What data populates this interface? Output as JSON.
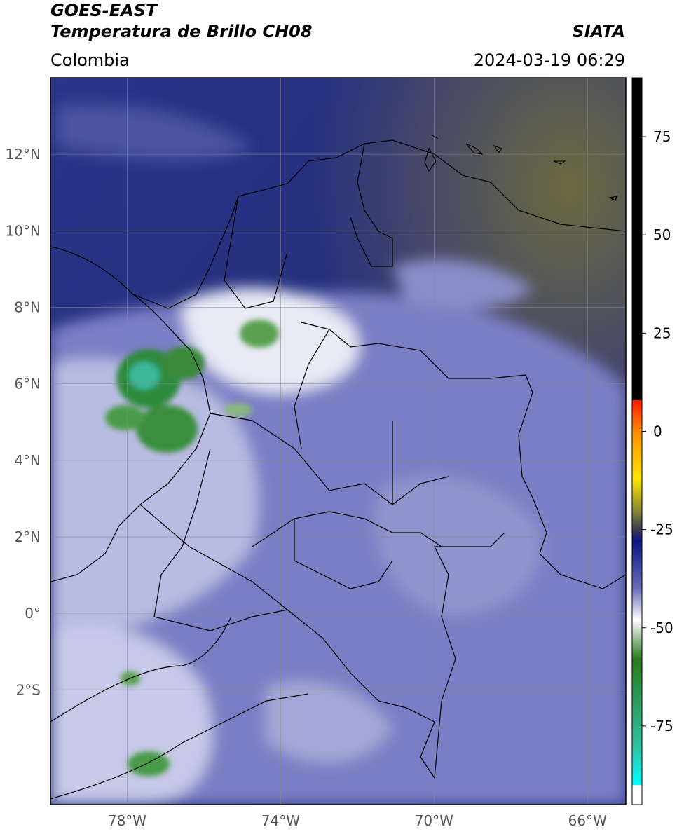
{
  "header": {
    "satellite": "GOES-EAST",
    "product": "Temperatura de Brillo CH08",
    "agency": "SIATA",
    "region": "Colombia",
    "datetime": "2024-03-19 06:29"
  },
  "map": {
    "lon_range": [
      -80.0,
      -65.0
    ],
    "lat_range": [
      -5.0,
      14.0
    ],
    "x_ticks": [
      {
        "value": -78,
        "label": "78°W"
      },
      {
        "value": -74,
        "label": "74°W"
      },
      {
        "value": -70,
        "label": "70°W"
      },
      {
        "value": -66,
        "label": "66°W"
      }
    ],
    "y_ticks": [
      {
        "value": 12,
        "label": "12°N"
      },
      {
        "value": 10,
        "label": "10°N"
      },
      {
        "value": 8,
        "label": "8°N"
      },
      {
        "value": 6,
        "label": "6°N"
      },
      {
        "value": 4,
        "label": "4°N"
      },
      {
        "value": 2,
        "label": "2°N"
      },
      {
        "value": 0,
        "label": "0°"
      },
      {
        "value": -2,
        "label": "2°S"
      }
    ],
    "grid": true
  },
  "colorbar": {
    "range": [
      -95,
      90
    ],
    "ticks": [
      {
        "value": 75,
        "label": "75"
      },
      {
        "value": 50,
        "label": "50"
      },
      {
        "value": 25,
        "label": "25"
      },
      {
        "value": 0,
        "label": "0"
      },
      {
        "value": -25,
        "label": "-25"
      },
      {
        "value": -50,
        "label": "-50"
      },
      {
        "value": -75,
        "label": "-75"
      }
    ],
    "stops": [
      {
        "value": 90,
        "color": "#000000"
      },
      {
        "value": 8,
        "color": "#000000"
      },
      {
        "value": 7.9,
        "color": "#ff1a00"
      },
      {
        "value": 0,
        "color": "#ff8c00"
      },
      {
        "value": -12,
        "color": "#ffe600"
      },
      {
        "value": -20,
        "color": "#8a8a30"
      },
      {
        "value": -25,
        "color": "#3a3a55"
      },
      {
        "value": -28,
        "color": "#0a1580"
      },
      {
        "value": -40,
        "color": "#6870b8"
      },
      {
        "value": -48,
        "color": "#ffffff"
      },
      {
        "value": -58,
        "color": "#2a7a1e"
      },
      {
        "value": -80,
        "color": "#30c0a0"
      },
      {
        "value": -90,
        "color": "#00ffff"
      },
      {
        "value": -90.1,
        "color": "#ffffff"
      },
      {
        "value": -95,
        "color": "#ffffff"
      }
    ]
  },
  "cloud_features": [
    {
      "name": "convective-cloud",
      "lon": -77.6,
      "lat": 6.2,
      "rx": 0.8,
      "ry": 0.75,
      "level": "coldest"
    },
    {
      "name": "convective-cloud",
      "lon": -76.8,
      "lat": 6.4,
      "rx": 0.55,
      "ry": 0.5,
      "level": "cold"
    },
    {
      "name": "convective-cloud",
      "lon": -77.2,
      "lat": 4.8,
      "rx": 0.9,
      "ry": 0.7,
      "level": "cold"
    },
    {
      "name": "convective-cloud",
      "lon": -78.3,
      "lat": 5.0,
      "rx": 0.6,
      "ry": 0.45,
      "level": "cold"
    },
    {
      "name": "convective-cloud",
      "lon": -74.6,
      "lat": 7.6,
      "rx": 0.55,
      "ry": 0.4,
      "level": "cold"
    },
    {
      "name": "convective-cloud",
      "lon": -77.7,
      "lat": -3.8,
      "rx": 0.6,
      "ry": 0.35,
      "level": "cold"
    }
  ],
  "colors": {
    "background_sea": "#2a3488",
    "land_base": "#7478c0",
    "border_line": "#000000",
    "grid_line": "#8a8a8a",
    "tick_text": "#555555"
  }
}
